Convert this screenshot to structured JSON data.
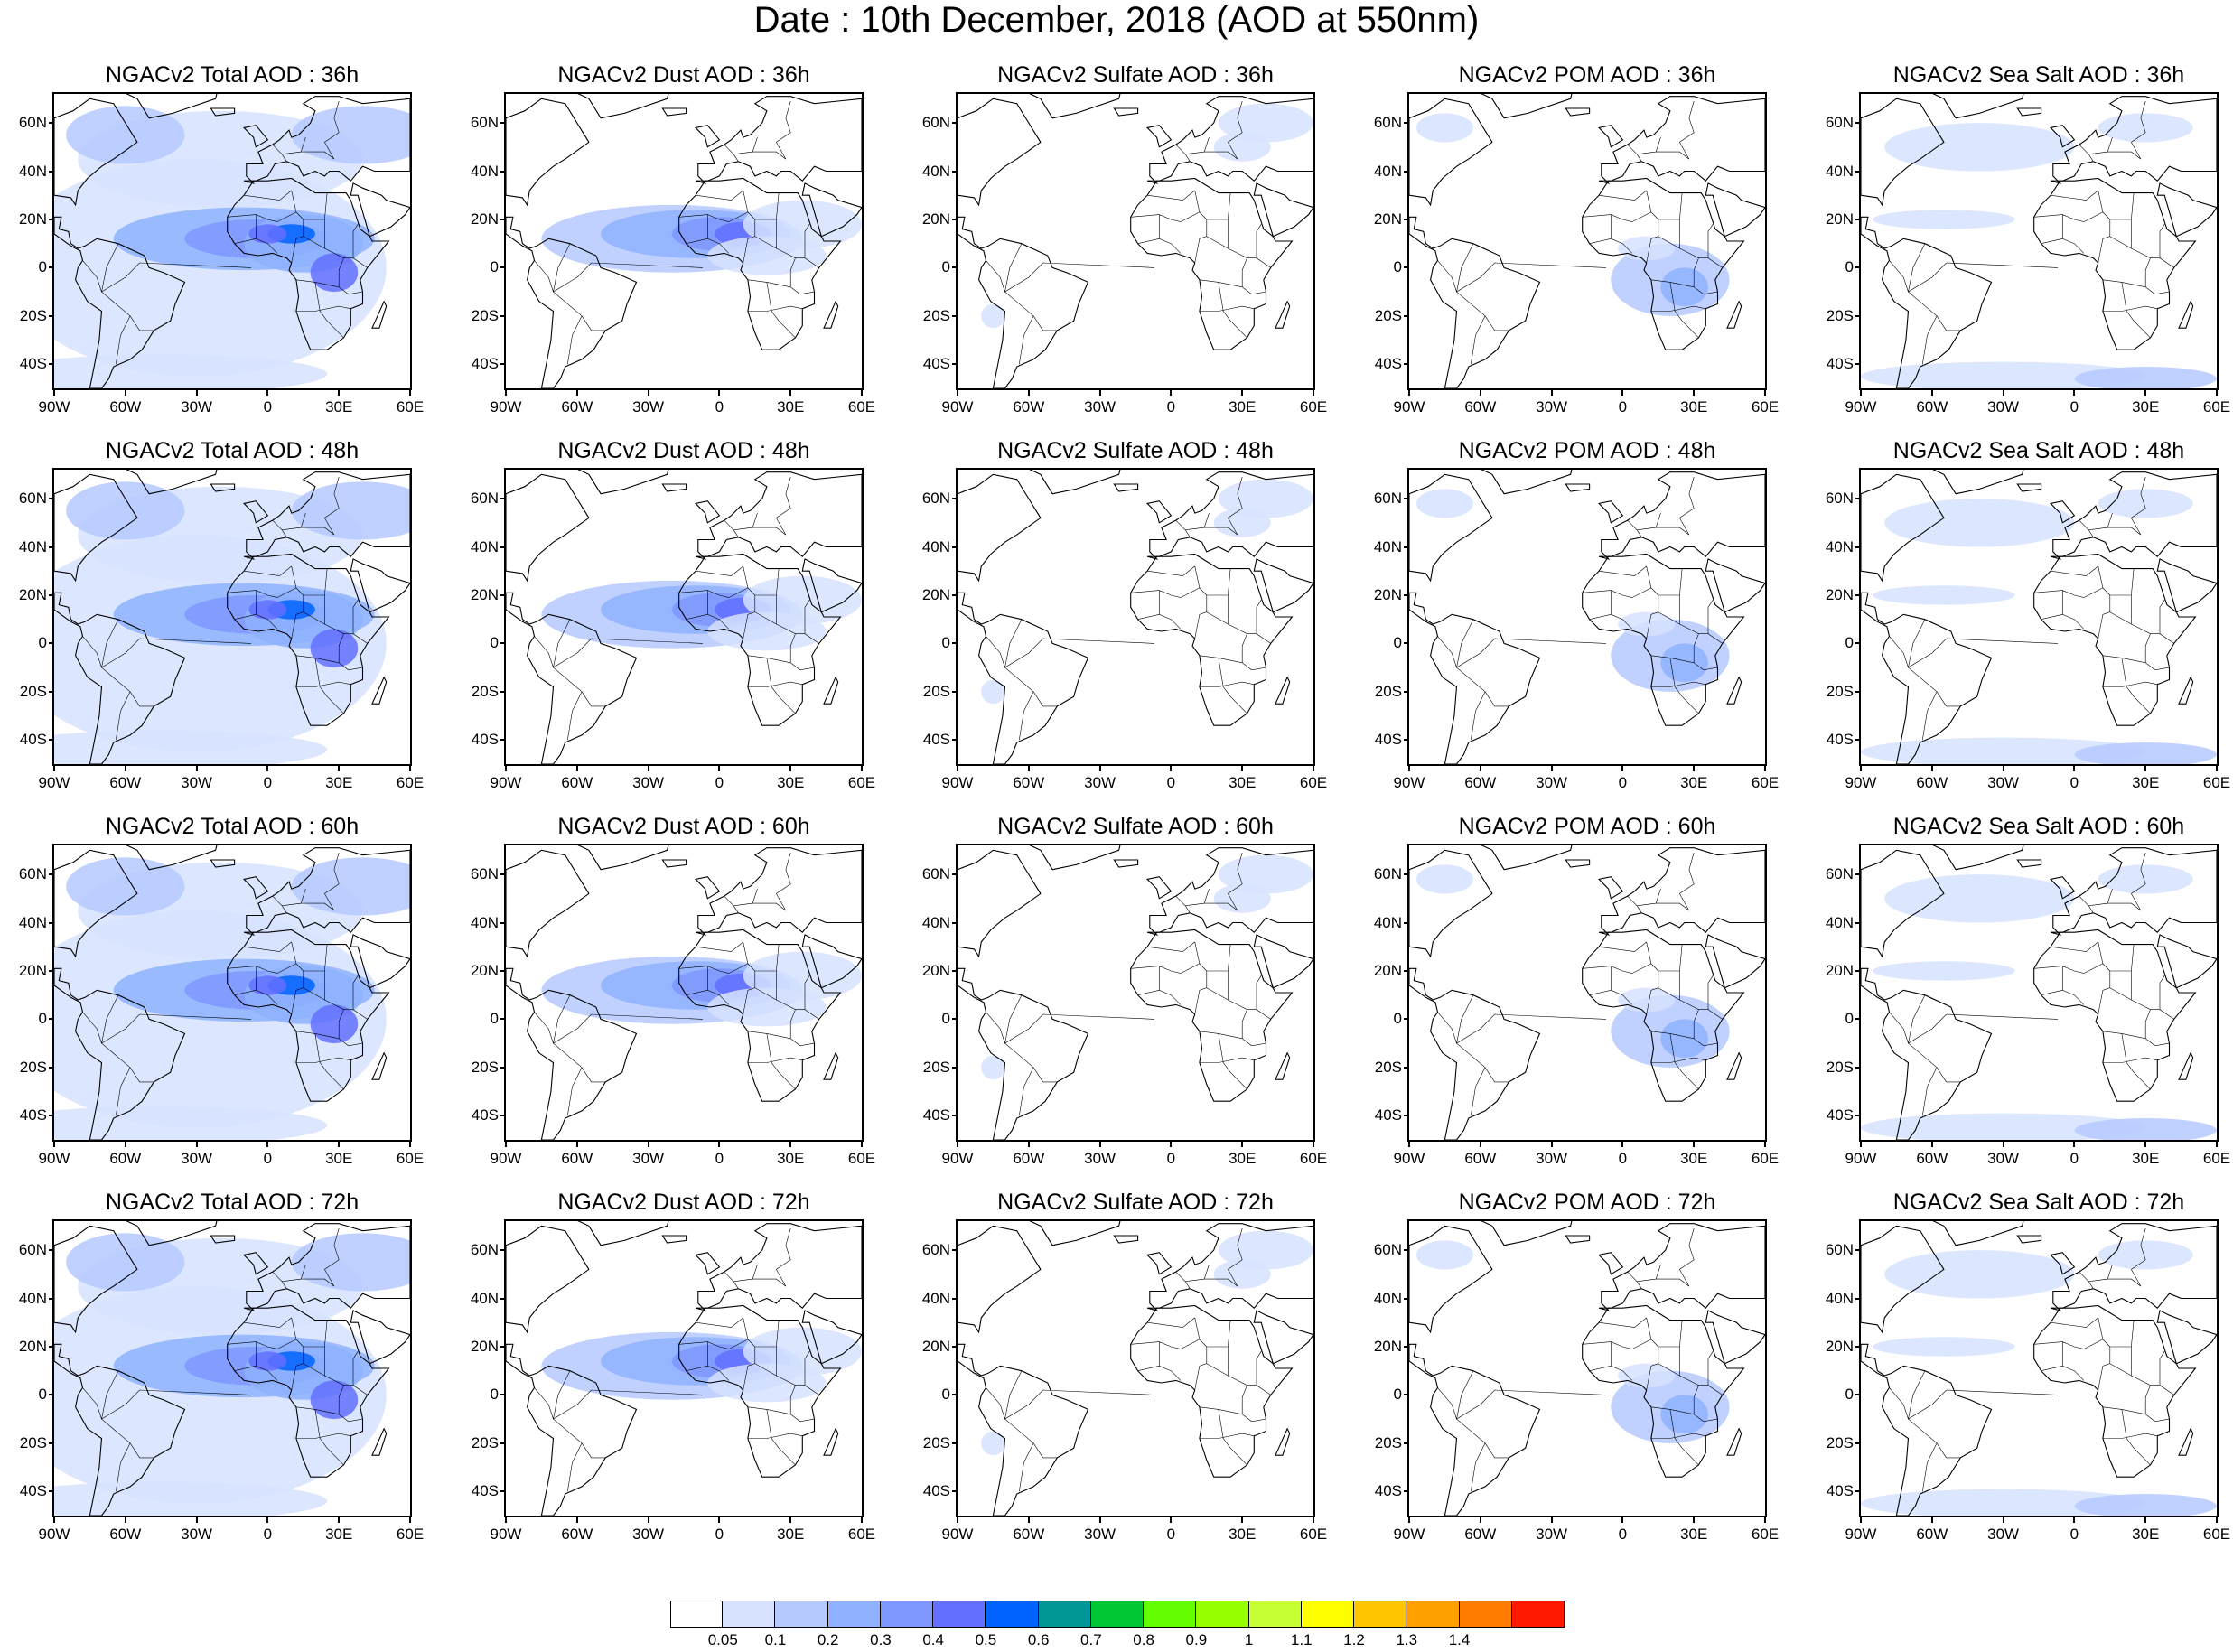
{
  "title": "Date : 10th December, 2018 (AOD at 550nm)",
  "panels": [
    {
      "title": "NGACv2 Total AOD : 36h",
      "species": "total"
    },
    {
      "title": "NGACv2 Dust AOD : 36h",
      "species": "dust"
    },
    {
      "title": "NGACv2 Sulfate AOD : 36h",
      "species": "sulfate"
    },
    {
      "title": "NGACv2 POM AOD : 36h",
      "species": "pom"
    },
    {
      "title": "NGACv2 Sea Salt AOD : 36h",
      "species": "seasalt"
    },
    {
      "title": "NGACv2 Total AOD : 48h",
      "species": "total"
    },
    {
      "title": "NGACv2 Dust AOD : 48h",
      "species": "dust"
    },
    {
      "title": "NGACv2 Sulfate AOD : 48h",
      "species": "sulfate"
    },
    {
      "title": "NGACv2 POM AOD : 48h",
      "species": "pom"
    },
    {
      "title": "NGACv2 Sea Salt AOD : 48h",
      "species": "seasalt"
    },
    {
      "title": "NGACv2 Total AOD : 60h",
      "species": "total"
    },
    {
      "title": "NGACv2 Dust AOD : 60h",
      "species": "dust"
    },
    {
      "title": "NGACv2 Sulfate AOD : 60h",
      "species": "sulfate"
    },
    {
      "title": "NGACv2 POM AOD : 60h",
      "species": "pom"
    },
    {
      "title": "NGACv2 Sea Salt AOD : 60h",
      "species": "seasalt"
    },
    {
      "title": "NGACv2 Total AOD : 72h",
      "species": "total"
    },
    {
      "title": "NGACv2 Dust AOD : 72h",
      "species": "dust"
    },
    {
      "title": "NGACv2 Sulfate AOD : 72h",
      "species": "sulfate"
    },
    {
      "title": "NGACv2 POM AOD : 72h",
      "species": "pom"
    },
    {
      "title": "NGACv2 Sea Salt  AOD : 72h",
      "species": "seasalt"
    }
  ],
  "axes": {
    "lat_labels": [
      "60N",
      "40N",
      "20N",
      "0",
      "20S",
      "40S"
    ],
    "lon_labels": [
      "90W",
      "60W",
      "30W",
      "0",
      "30E",
      "60E"
    ]
  },
  "colorbar": {
    "labels": [
      "0.05",
      "0.1",
      "0.2",
      "0.3",
      "0.4",
      "0.5",
      "0.6",
      "0.7",
      "0.8",
      "0.9",
      "1",
      "1.1",
      "1.2",
      "1.3",
      "1.4"
    ],
    "colors": [
      "#ffffff",
      "#d6e2ff",
      "#b5c9ff",
      "#8eb2ff",
      "#7f96ff",
      "#6370ff",
      "#0063ff",
      "#009696",
      "#00c633",
      "#63ff00",
      "#96ff00",
      "#c6ff33",
      "#ffff00",
      "#ffc600",
      "#ffa000",
      "#ff7c00",
      "#ff1900"
    ]
  }
}
